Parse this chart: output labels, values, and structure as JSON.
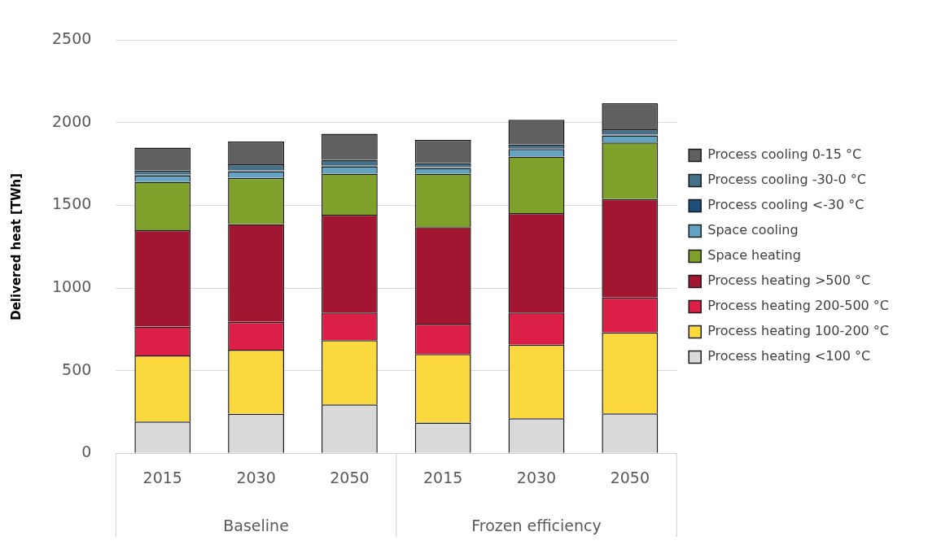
{
  "chart_data": {
    "type": "bar",
    "stacked": true,
    "ylabel": "Delivered heat [TWh]",
    "categories": [
      "2015",
      "2030",
      "2050",
      "2015",
      "2030",
      "2050"
    ],
    "annotations": [
      "Baseline",
      "Frozen efficiency"
    ],
    "ylim": [
      0,
      2500
    ],
    "yticks": [
      0,
      500,
      1000,
      1500,
      2000,
      2500
    ],
    "grid": "y",
    "legend": "right",
    "series": [
      {
        "name": "Process heating <100 °C",
        "color": "#d9d9d9",
        "values": [
          192,
          238,
          295,
          185,
          212,
          241
        ]
      },
      {
        "name": "Process heating 100-200 °C",
        "color": "#fad83e",
        "values": [
          400,
          388,
          389,
          415,
          445,
          490
        ]
      },
      {
        "name": "Process heating 200-500 °C",
        "color": "#dc1f46",
        "values": [
          174,
          169,
          167,
          184,
          194,
          212
        ]
      },
      {
        "name": "Process heating >500 °C",
        "color": "#a31631",
        "values": [
          584,
          592,
          592,
          585,
          602,
          595
        ]
      },
      {
        "name": "Space heating",
        "color": "#7fa02a",
        "values": [
          293,
          279,
          249,
          323,
          342,
          342
        ]
      },
      {
        "name": "Space cooling",
        "color": "#65a3c2",
        "values": [
          38,
          41,
          43,
          35,
          46,
          43
        ]
      },
      {
        "name": "Process cooling <-30 °C",
        "color": "#1f4e79",
        "values": [
          5,
          5,
          5,
          5,
          5,
          5
        ]
      },
      {
        "name": "Process cooling -30-0 °C",
        "color": "#46708a",
        "values": [
          24,
          37,
          36,
          24,
          23,
          33
        ]
      },
      {
        "name": "Process cooling 0-15 °C",
        "color": "#606060",
        "values": [
          140,
          138,
          157,
          140,
          149,
          157
        ]
      }
    ]
  }
}
